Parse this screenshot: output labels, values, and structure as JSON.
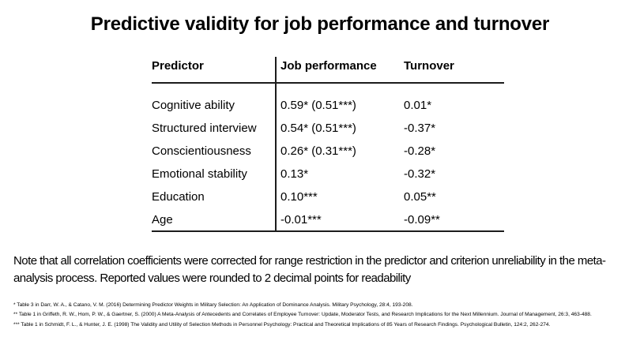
{
  "title": "Predictive validity for job performance and turnover",
  "table": {
    "columns": [
      "Predictor",
      "Job performance",
      "Turnover"
    ],
    "rows": [
      {
        "predictor": "Cognitive ability",
        "job_performance": "0.59* (0.51***)",
        "turnover": "0.01*"
      },
      {
        "predictor": "Structured interview",
        "job_performance": "0.54* (0.51***)",
        "turnover": "-0.37*"
      },
      {
        "predictor": "Conscientiousness",
        "job_performance": "0.26* (0.31***)",
        "turnover": "-0.28*"
      },
      {
        "predictor": "Emotional stability",
        "job_performance": "0.13*",
        "turnover": "-0.32*"
      },
      {
        "predictor": "Education",
        "job_performance": "0.10***",
        "turnover": "0.05**"
      },
      {
        "predictor": "Age",
        "job_performance": "-0.01***",
        "turnover": "-0.09**"
      }
    ]
  },
  "note": "Note that all correlation coefficients were corrected for range restriction in the predictor and criterion unreliability in the meta-analysis process. Reported values were rounded to 2 decimal points for readability",
  "footnotes": [
    "* Table 3 in Darr, W. A., & Catano, V. M. (2016) Determining Predictor Weights in Military Selection: An Application of Dominance Analysis. Military Psychology, 28:4, 193-208.",
    "** Table 1 in Griffeth, R. W., Hom, P. W., & Gaertner, S. (2000) A Meta-Analysis of Antecedents and Correlates of Employee Turnover: Update, Moderator Tests, and Research Implications for the Next Millennium. Journal of Management, 26:3, 463-488.",
    "*** Table 1 in Schmidt, F. L., & Hunter, J. E. (1998) The Validity and Utility of Selection Methods in Personnel Psychology: Practical and Theoretical Implications of 85 Years of Research Findings. Psychological Bulletin, 124:2, 262-274."
  ],
  "colors": {
    "text": "#000000",
    "background": "#ffffff",
    "rule_line": "#1c1c1c"
  }
}
